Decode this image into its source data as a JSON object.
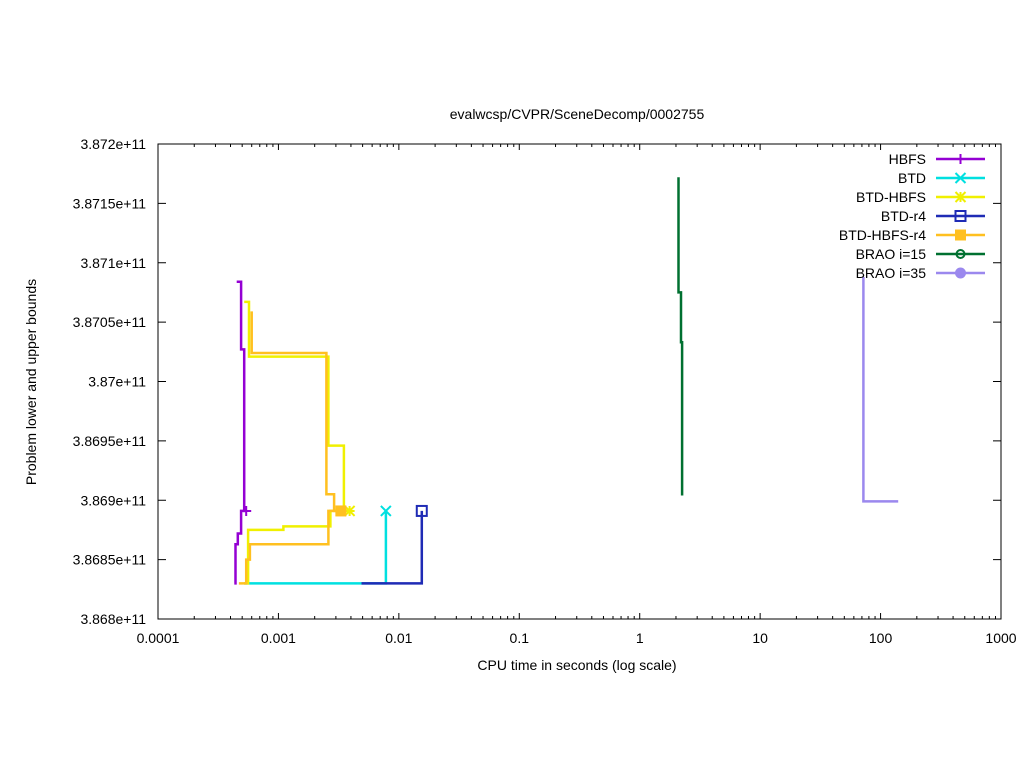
{
  "chart_data": {
    "type": "line",
    "title": "evalwcsp/CVPR/SceneDecomp/0002755",
    "xlabel": "CPU time in seconds (log scale)",
    "ylabel": "Problem lower and upper bounds",
    "xscale": "log",
    "xlim": [
      0.0001,
      1000
    ],
    "ylim": [
      386800000000.0,
      387200000000.0
    ],
    "x_ticks": [
      0.0001,
      0.001,
      0.01,
      0.1,
      1,
      10,
      100,
      1000
    ],
    "x_tick_labels": [
      "0.0001",
      "0.001",
      "0.01",
      "0.1",
      "1",
      "10",
      "100",
      "1000"
    ],
    "y_ticks": [
      386800000000.0,
      386850000000.0,
      386900000000.0,
      386950000000.0,
      387000000000.0,
      387050000000.0,
      387100000000.0,
      387150000000.0,
      387200000000.0
    ],
    "y_tick_labels": [
      "3.868e+11",
      "3.8685e+11",
      "3.869e+11",
      "3.8695e+11",
      "3.87e+11",
      "3.8705e+11",
      "3.871e+11",
      "3.8715e+11",
      "3.872e+11"
    ],
    "grid": false,
    "legend_position": "top-right",
    "series": [
      {
        "name": "HBFS",
        "color": "#9400d3",
        "marker": "plus",
        "marker_point": [
          0.00054,
          386891000000.0
        ],
        "paths": [
          [
            [
              0.00045,
              387084000000.0
            ],
            [
              0.00049,
              387084000000.0
            ],
            [
              0.00049,
              387027000000.0
            ],
            [
              0.00052,
              387027000000.0
            ],
            [
              0.00052,
              386891000000.0
            ],
            [
              0.00054,
              386891000000.0
            ]
          ],
          [
            [
              0.00043,
              386830000000.0
            ],
            [
              0.00044,
              386830000000.0
            ],
            [
              0.00044,
              386863000000.0
            ],
            [
              0.00046,
              386863000000.0
            ],
            [
              0.00046,
              386872000000.0
            ],
            [
              0.00049,
              386872000000.0
            ],
            [
              0.00049,
              386891000000.0
            ],
            [
              0.00054,
              386891000000.0
            ]
          ]
        ]
      },
      {
        "name": "BTD",
        "color": "#00e0e0",
        "marker": "cross",
        "marker_point": [
          0.0078,
          386891000000.0
        ],
        "paths": [
          [
            [
              0.00052,
              386830000000.0
            ],
            [
              0.0078,
              386830000000.0
            ],
            [
              0.0078,
              386891000000.0
            ]
          ]
        ]
      },
      {
        "name": "BTD-HBFS",
        "color": "#f0f000",
        "marker": "star",
        "marker_point": [
          0.0039,
          386891000000.0
        ],
        "paths": [
          [
            [
              0.00052,
              387067000000.0
            ],
            [
              0.00057,
              387067000000.0
            ],
            [
              0.00057,
              387021000000.0
            ],
            [
              0.0026,
              387021000000.0
            ],
            [
              0.0026,
              386946000000.0
            ],
            [
              0.0035,
              386946000000.0
            ],
            [
              0.0035,
              386891000000.0
            ],
            [
              0.0039,
              386891000000.0
            ]
          ],
          [
            [
              0.00052,
              386830000000.0
            ],
            [
              0.00056,
              386830000000.0
            ],
            [
              0.00056,
              386875000000.0
            ],
            [
              0.0011,
              386875000000.0
            ],
            [
              0.0011,
              386878000000.0
            ],
            [
              0.0027,
              386878000000.0
            ],
            [
              0.0027,
              386891000000.0
            ],
            [
              0.0039,
              386891000000.0
            ]
          ]
        ]
      },
      {
        "name": "BTD-r4",
        "color": "#1f2bb5",
        "marker": "square",
        "marker_point": [
          0.0155,
          386891000000.0
        ],
        "paths": [
          [
            [
              0.0049,
              386830000000.0
            ],
            [
              0.0155,
              386830000000.0
            ],
            [
              0.0155,
              386891000000.0
            ]
          ]
        ]
      },
      {
        "name": "BTD-HBFS-r4",
        "color": "#ffc020",
        "marker": "filled-square",
        "marker_point": [
          0.0033,
          386891000000.0
        ],
        "paths": [
          [
            [
              0.0006,
              387059000000.0
            ],
            [
              0.0006,
              387024000000.0
            ],
            [
              0.0025,
              387024000000.0
            ],
            [
              0.0025,
              386905000000.0
            ],
            [
              0.0029,
              386905000000.0
            ],
            [
              0.0029,
              386891000000.0
            ],
            [
              0.0033,
              386891000000.0
            ]
          ],
          [
            [
              0.00047,
              386830000000.0
            ],
            [
              0.00054,
              386830000000.0
            ],
            [
              0.00054,
              386850000000.0
            ],
            [
              0.00058,
              386850000000.0
            ],
            [
              0.00058,
              386863000000.0
            ],
            [
              0.0026,
              386863000000.0
            ],
            [
              0.0026,
              386891000000.0
            ],
            [
              0.0033,
              386891000000.0
            ]
          ]
        ]
      },
      {
        "name": "BRAO i=15",
        "color": "#007030",
        "marker": "circle",
        "marker_point": null,
        "paths": [
          [
            [
              2.1,
              387172000000.0
            ],
            [
              2.1,
              387075000000.0
            ],
            [
              2.2,
              387075000000.0
            ],
            [
              2.2,
              387033000000.0
            ],
            [
              2.25,
              387033000000.0
            ],
            [
              2.25,
              386904000000.0
            ]
          ]
        ]
      },
      {
        "name": "BRAO i=35",
        "color": "#9b88ee",
        "marker": "filled-circle",
        "marker_point": null,
        "paths": [
          [
            [
              72,
              387088000000.0
            ],
            [
              72,
              386899000000.0
            ],
            [
              140,
              386899000000.0
            ]
          ]
        ]
      }
    ]
  }
}
